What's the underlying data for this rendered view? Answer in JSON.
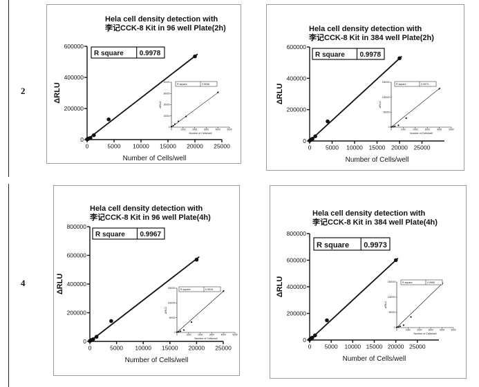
{
  "rows": [
    {
      "label": "2"
    },
    {
      "label": "4"
    }
  ],
  "chart_data": [
    {
      "type": "scatter",
      "title": "Hela cell density detection with\n李记CCK-8 Kit in 96 well Plate(2h)",
      "xlabel": "Number of Cells/well",
      "ylabel": "ΔRLU",
      "xlim": [
        0,
        25000
      ],
      "ylim": [
        0,
        600000
      ],
      "xticks": [
        0,
        5000,
        10000,
        15000,
        20000,
        25000
      ],
      "yticks": [
        0,
        200000,
        400000,
        600000
      ],
      "r_square_label": "R square",
      "r_square_value": "0.9978",
      "points": [
        [
          0,
          2000
        ],
        [
          156,
          4000
        ],
        [
          312,
          7000
        ],
        [
          625,
          11000
        ],
        [
          1250,
          28000
        ],
        [
          4000,
          130000
        ],
        [
          20000,
          535000
        ]
      ],
      "fit": [
        [
          0,
          0
        ],
        [
          20500,
          550000
        ]
      ],
      "inset": {
        "xlabel": "Number of Cells/well",
        "ylabel": "ΔRLU",
        "r_square_label": "R square",
        "r_square_value": "0.9938",
        "xlim": [
          0,
          5000
        ],
        "ylim": [
          0,
          40000
        ],
        "xticks": [
          0,
          1000,
          2000,
          3000,
          4000,
          5000
        ],
        "yticks": [
          0,
          10000,
          20000,
          30000,
          40000
        ],
        "points": [
          [
            0,
            500
          ],
          [
            150,
            1200
          ],
          [
            300,
            2600
          ],
          [
            600,
            5200
          ],
          [
            1250,
            9500
          ],
          [
            4000,
            31000
          ]
        ],
        "fit": [
          [
            0,
            0
          ],
          [
            4100,
            31500
          ]
        ]
      }
    },
    {
      "type": "scatter",
      "title": "Hela cell density detection with\n李记CCK-8 Kit in 384 well Plate(2h)",
      "xlabel": "Number of Cells/well",
      "ylabel": "ΔRLU",
      "xlim": [
        0,
        30000
      ],
      "ylim": [
        0,
        600000
      ],
      "xticks": [
        0,
        5000,
        10000,
        15000,
        20000,
        25000
      ],
      "yticks": [
        0,
        200000,
        400000,
        600000
      ],
      "r_square_label": "R square",
      "r_square_value": "0.9978",
      "points": [
        [
          0,
          2000
        ],
        [
          156,
          5000
        ],
        [
          312,
          9000
        ],
        [
          625,
          14000
        ],
        [
          1250,
          30000
        ],
        [
          4000,
          125000
        ],
        [
          20000,
          528000
        ]
      ],
      "fit": [
        [
          0,
          0
        ],
        [
          20500,
          540000
        ]
      ],
      "inset": {
        "xlabel": "Number of Cells/well",
        "ylabel": "ΔRLU",
        "r_square_label": "R square",
        "r_square_value": "0.9973",
        "xlim": [
          0,
          5000
        ],
        "ylim": [
          0,
          150000
        ],
        "xticks": [
          0,
          1000,
          2000,
          3000,
          4000,
          5000
        ],
        "yticks": [
          0,
          50000,
          100000,
          150000
        ],
        "points": [
          [
            0,
            500
          ],
          [
            150,
            1500
          ],
          [
            300,
            3000
          ],
          [
            600,
            6000
          ],
          [
            1250,
            30000
          ],
          [
            4000,
            128000
          ]
        ],
        "fit": [
          [
            0,
            0
          ],
          [
            4100,
            132000
          ]
        ]
      }
    },
    {
      "type": "scatter",
      "title": "Hela cell density detection with\n李记CCK-8 Kit in 96 well Plate(4h)",
      "xlabel": "Number of Cells/well",
      "ylabel": "ΔRLU",
      "xlim": [
        0,
        25000
      ],
      "ylim": [
        0,
        800000
      ],
      "xticks": [
        0,
        5000,
        10000,
        15000,
        20000,
        25000
      ],
      "yticks": [
        0,
        200000,
        400000,
        600000,
        800000
      ],
      "r_square_label": "R square",
      "r_square_value": "0.9967",
      "points": [
        [
          0,
          3000
        ],
        [
          156,
          6000
        ],
        [
          312,
          10000
        ],
        [
          625,
          15000
        ],
        [
          1250,
          32000
        ],
        [
          4000,
          142000
        ],
        [
          20000,
          570000
        ]
      ],
      "fit": [
        [
          0,
          0
        ],
        [
          20500,
          590000
        ]
      ],
      "inset": {
        "xlabel": "Number of Cells/well",
        "ylabel": "ΔRLU",
        "r_square_label": "R square",
        "r_square_value": "0.9916",
        "xlim": [
          0,
          5000
        ],
        "ylim": [
          0,
          150000
        ],
        "xticks": [
          0,
          1000,
          2000,
          3000,
          4000,
          5000
        ],
        "yticks": [
          0,
          50000,
          100000,
          150000
        ],
        "points": [
          [
            0,
            800
          ],
          [
            150,
            2000
          ],
          [
            300,
            4000
          ],
          [
            600,
            8000
          ],
          [
            1250,
            35000
          ],
          [
            4000,
            140000
          ]
        ],
        "fit": [
          [
            0,
            0
          ],
          [
            4100,
            143000
          ]
        ]
      }
    },
    {
      "type": "scatter",
      "title": "Hela cell density detection with\n李记CCK-8 Kit in 384 well Plate(4h)",
      "xlabel": "Number of Cells/well",
      "ylabel": "ΔRLU",
      "xlim": [
        0,
        30000
      ],
      "ylim": [
        0,
        800000
      ],
      "xticks": [
        0,
        5000,
        10000,
        15000,
        20000,
        25000
      ],
      "yticks": [
        0,
        200000,
        400000,
        600000,
        800000
      ],
      "r_square_label": "R square",
      "r_square_value": "0.9973",
      "points": [
        [
          0,
          3000
        ],
        [
          156,
          7000
        ],
        [
          312,
          12000
        ],
        [
          625,
          18000
        ],
        [
          1250,
          35000
        ],
        [
          4000,
          148000
        ],
        [
          20000,
          600000
        ]
      ],
      "fit": [
        [
          0,
          0
        ],
        [
          20500,
          615000
        ]
      ],
      "inset": {
        "xlabel": "Number of Cells/well",
        "ylabel": "ΔRLU",
        "r_square_label": "R square",
        "r_square_value": "0.9985",
        "xlim": [
          0,
          5000
        ],
        "ylim": [
          0,
          150000
        ],
        "xticks": [
          0,
          1000,
          2000,
          3000,
          4000,
          5000
        ],
        "yticks": [
          0,
          50000,
          100000,
          150000
        ],
        "points": [
          [
            0,
            800
          ],
          [
            150,
            2000
          ],
          [
            300,
            4000
          ],
          [
            600,
            8000
          ],
          [
            1250,
            35000
          ],
          [
            4000,
            144000
          ]
        ],
        "fit": [
          [
            0,
            0
          ],
          [
            4100,
            148000
          ]
        ]
      }
    }
  ]
}
